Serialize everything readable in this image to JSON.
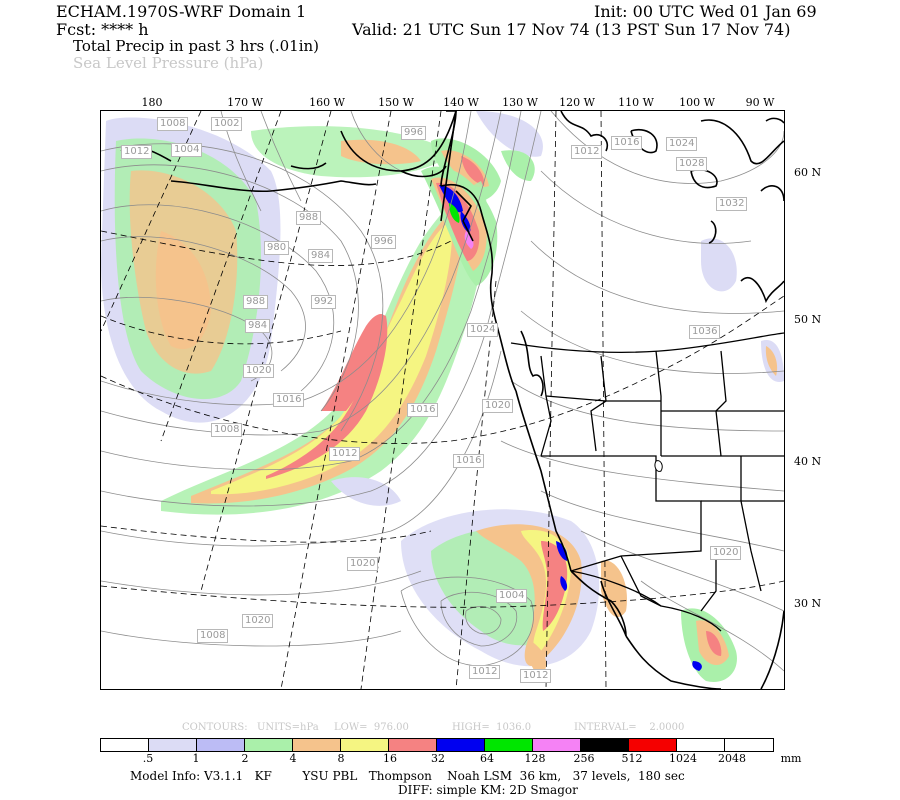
{
  "header": {
    "model": "ECHAM.1970S-WRF Domain 1",
    "init": "Init: 00 UTC Wed 01 Jan 69",
    "fcst": "Fcst: **** h",
    "valid": "Valid: 21 UTC Sun 17 Nov 74 (13 PST Sun 17 Nov 74)",
    "field1": "Total Precip in past 3 hrs (.01in)",
    "field2": "Sea Level Pressure (hPa)"
  },
  "longitude_labels": [
    "180",
    "170 W",
    "160 W",
    "150 W",
    "140 W",
    "130 W",
    "120 W",
    "110 W",
    "100 W",
    "90 W"
  ],
  "latitude_labels": [
    "60 N",
    "50 N",
    "40 N",
    "30 N"
  ],
  "pressure_labels": [
    "1008",
    "1002",
    "1004",
    "1012",
    "996",
    "1012",
    "1016",
    "1024",
    "1028",
    "1032",
    "988",
    "984",
    "980",
    "992",
    "996",
    "988",
    "984",
    "1024",
    "1036",
    "1016",
    "1020",
    "1016",
    "1012",
    "1020",
    "1008",
    "1016",
    "1020",
    "1020",
    "1004",
    "1008",
    "1012",
    "1012",
    "1020"
  ],
  "contour_info": {
    "contours": "CONTOURS:",
    "units": "UNITS=hPa",
    "low": "LOW=  976.00",
    "high": "HIGH=  1036.0",
    "interval": "INTERVAL=    2.0000"
  },
  "legend": {
    "colors": [
      "#ffffff",
      "#dcdcf5",
      "#bcbcf5",
      "#aaf0aa",
      "#f5c38c",
      "#f5f582",
      "#f58282",
      "#0000f0",
      "#00e600",
      "#f582f5",
      "#000000",
      "#f50000",
      "#ffffff",
      "#ffffff"
    ],
    "labels": [
      ".5",
      "1",
      "2",
      "4",
      "8",
      "16",
      "32",
      "64",
      "128",
      "256",
      "512",
      "1024",
      "2048"
    ],
    "unit": "mm"
  },
  "footer": {
    "line1": "Model Info: V3.1.1   KF        YSU PBL   Thompson    Noah LSM  36 km,   37 levels,  180 sec",
    "line2": "DIFF: simple KM: 2D Smagor"
  }
}
